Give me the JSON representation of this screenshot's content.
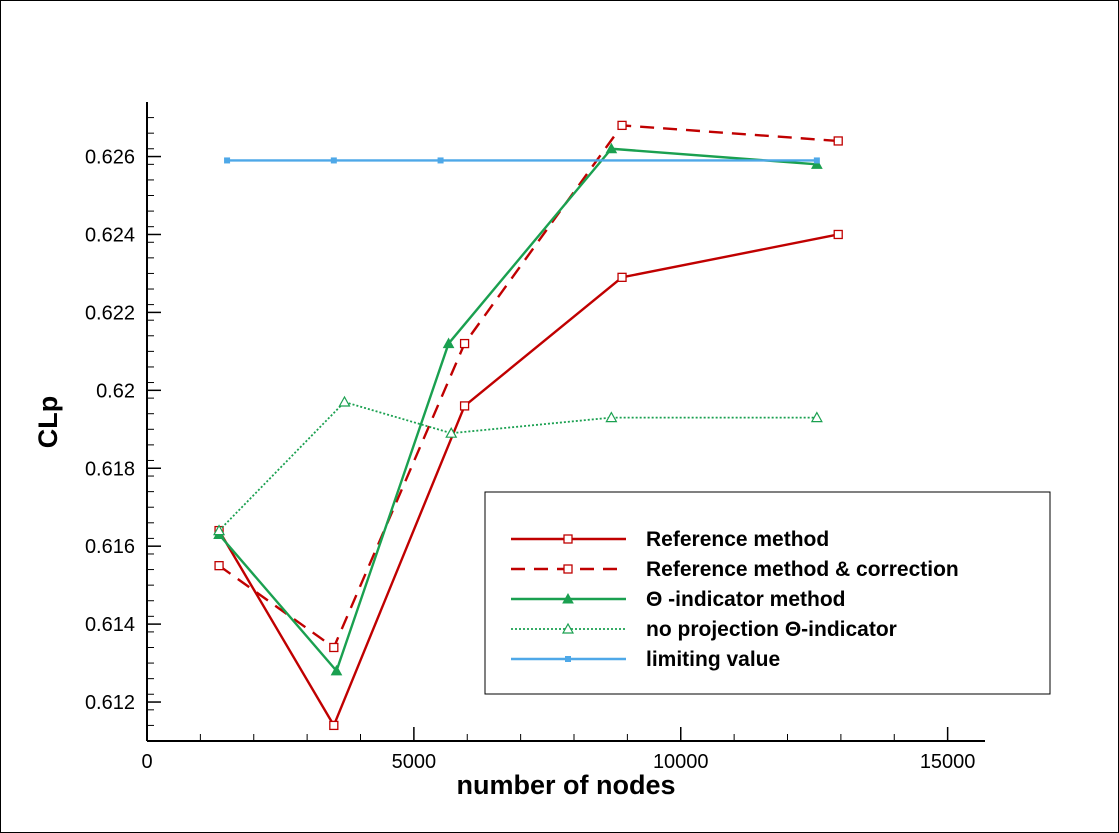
{
  "chart_data": {
    "type": "line",
    "xlabel": "number of nodes",
    "ylabel": "CLp",
    "xlim": [
      0,
      15700
    ],
    "ylim": [
      0.611,
      0.6274
    ],
    "xticks": [
      0,
      5000,
      10000,
      15000
    ],
    "xtick_labels": [
      "0",
      "5000",
      "10000",
      "15000"
    ],
    "yticks": [
      0.612,
      0.614,
      0.616,
      0.618,
      0.62,
      0.622,
      0.624,
      0.626
    ],
    "ytick_labels": [
      "0.612",
      "0.614",
      "0.616",
      "0.618",
      "0.62",
      "0.622",
      "0.624",
      "0.626"
    ],
    "grid": false,
    "legend_position": "bottom-right",
    "series": [
      {
        "name": "Reference method",
        "color": "#c00000",
        "dash": "solid",
        "marker": "square",
        "x": [
          1350,
          3500,
          5950,
          8900,
          12950
        ],
        "y": [
          0.6164,
          0.6114,
          0.6196,
          0.6229,
          0.624
        ]
      },
      {
        "name": "Reference method & correction",
        "color": "#c00000",
        "dash": "dashed",
        "marker": "square",
        "x": [
          1350,
          3500,
          5950,
          8900,
          12950
        ],
        "y": [
          0.6155,
          0.6134,
          0.6212,
          0.6268,
          0.6264
        ]
      },
      {
        "name": "Θ -indicator method",
        "color": "#1aa050",
        "dash": "solid",
        "marker": "triangle",
        "x": [
          1350,
          3550,
          5650,
          8700,
          12550
        ],
        "y": [
          0.6163,
          0.6128,
          0.6212,
          0.6262,
          0.6258
        ]
      },
      {
        "name": "no projection Θ-indicator",
        "color": "#1aa050",
        "dash": "dotted",
        "marker": "triangle",
        "x": [
          1350,
          3700,
          5700,
          8700,
          12550
        ],
        "y": [
          0.6164,
          0.6197,
          0.6189,
          0.6193,
          0.6193
        ]
      },
      {
        "name": "limiting value",
        "color": "#4ea8e8",
        "dash": "solid",
        "marker": "small-square",
        "x": [
          1500,
          3500,
          5500,
          12550
        ],
        "y": [
          0.6259,
          0.6259,
          0.6259,
          0.6259
        ]
      }
    ]
  }
}
